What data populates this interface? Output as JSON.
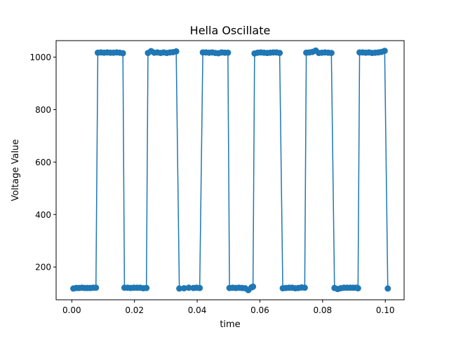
{
  "chart_data": {
    "type": "line",
    "title": "Hella Oscillate",
    "xlabel": "time",
    "ylabel": "Voltage Value",
    "xlim": [
      -0.005,
      0.106
    ],
    "ylim": [
      75,
      1063
    ],
    "xticks": [
      0.0,
      0.02,
      0.04,
      0.06,
      0.08,
      0.1
    ],
    "xtick_labels": [
      "0.00",
      "0.02",
      "0.04",
      "0.06",
      "0.08",
      "0.10"
    ],
    "yticks": [
      200,
      400,
      600,
      800,
      1000
    ],
    "ytick_labels": [
      "200",
      "400",
      "600",
      "800",
      "1000"
    ],
    "grid": false,
    "marker": "circle",
    "color": "#1f77b4",
    "series": [
      {
        "x": [
          0.0005,
          0.0014,
          0.0023,
          0.0032,
          0.0041,
          0.005,
          0.0059,
          0.0068,
          0.0077,
          0.0083,
          0.0093,
          0.0103,
          0.0113,
          0.0123,
          0.0133,
          0.0143,
          0.0153,
          0.0163,
          0.0168,
          0.0178,
          0.0188,
          0.0198,
          0.0208,
          0.0218,
          0.0228,
          0.0238,
          0.0243,
          0.0253,
          0.0263,
          0.0273,
          0.0283,
          0.0293,
          0.0303,
          0.0313,
          0.0323,
          0.0333,
          0.0343,
          0.0358,
          0.0373,
          0.0388,
          0.0398,
          0.0408,
          0.0418,
          0.0428,
          0.0438,
          0.0448,
          0.0458,
          0.0468,
          0.0478,
          0.0488,
          0.0498,
          0.0503,
          0.0513,
          0.0523,
          0.0533,
          0.0543,
          0.0553,
          0.0563,
          0.0573,
          0.0578,
          0.0583,
          0.0593,
          0.0603,
          0.0613,
          0.0623,
          0.0633,
          0.0643,
          0.0653,
          0.0663,
          0.0673,
          0.0683,
          0.0693,
          0.0703,
          0.0713,
          0.0723,
          0.0733,
          0.0743,
          0.0748,
          0.0758,
          0.0768,
          0.0778,
          0.0788,
          0.0798,
          0.0808,
          0.0818,
          0.0828,
          0.0838,
          0.0848,
          0.0858,
          0.0868,
          0.0878,
          0.0888,
          0.0898,
          0.0908,
          0.0913,
          0.0918,
          0.0928,
          0.0938,
          0.0948,
          0.0958,
          0.0968,
          0.0978,
          0.0988,
          0.0998,
          0.1008
        ],
        "y": [
          118,
          120,
          120,
          121,
          120,
          120,
          120,
          121,
          121,
          1017,
          1018,
          1017,
          1018,
          1017,
          1017,
          1018,
          1017,
          1015,
          121,
          121,
          120,
          121,
          121,
          121,
          119,
          120,
          1016,
          1023,
          1017,
          1018,
          1016,
          1018,
          1016,
          1018,
          1019,
          1022,
          118,
          119,
          121,
          120,
          121,
          120,
          1018,
          1018,
          1017,
          1018,
          1016,
          1015,
          1018,
          1017,
          1017,
          120,
          121,
          120,
          121,
          120,
          119,
          112,
          122,
          125,
          1014,
          1017,
          1018,
          1017,
          1016,
          1017,
          1018,
          1018,
          1016,
          119,
          120,
          121,
          121,
          119,
          120,
          122,
          121,
          1017,
          1018,
          1020,
          1025,
          1016,
          1017,
          1018,
          1017,
          1016,
          120,
          116,
          119,
          121,
          121,
          121,
          121,
          121,
          119,
          1018,
          1018,
          1017,
          1018,
          1016,
          1017,
          1018,
          1020,
          1024,
          118
        ]
      }
    ]
  }
}
